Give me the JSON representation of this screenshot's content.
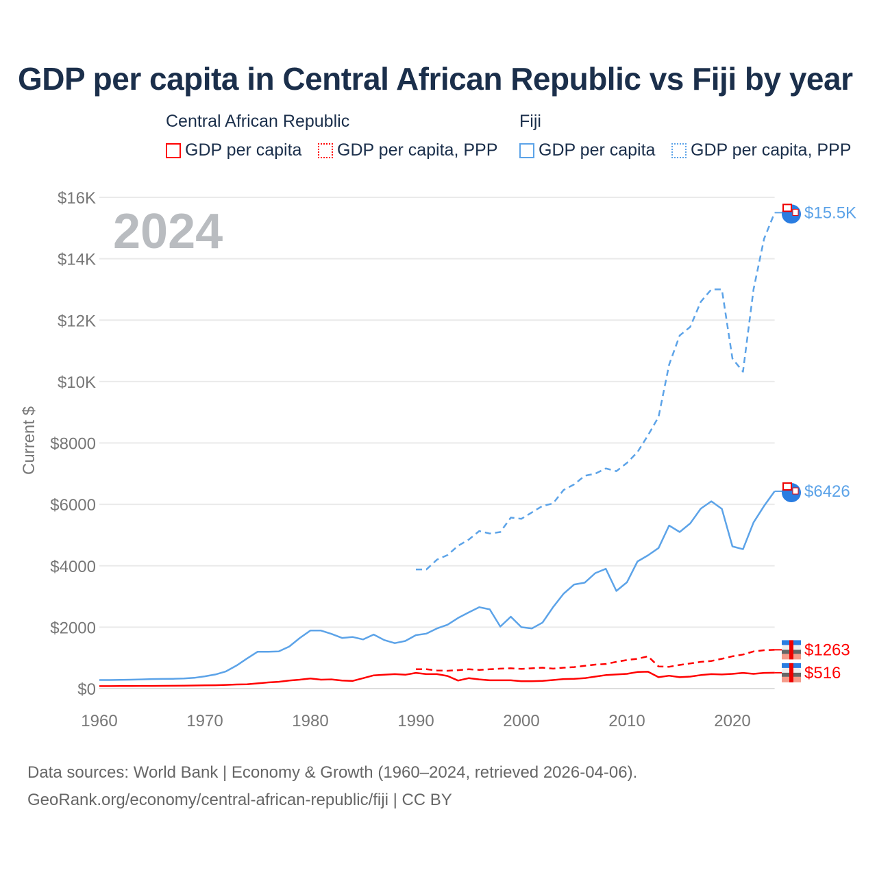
{
  "title": "GDP per capita in Central African Republic vs Fiji by year",
  "legend": {
    "groups": [
      {
        "country": "Central African Republic",
        "items": [
          "GDP per capita",
          "GDP per capita, PPP"
        ],
        "color": "#ff0000"
      },
      {
        "country": "Fiji",
        "items": [
          "GDP per capita",
          "GDP per capita, PPP"
        ],
        "color": "#5ca3e8"
      }
    ]
  },
  "source": {
    "line1": "Data sources: World Bank | Economy & Growth (1960–2024, retrieved 2026-04-06).",
    "line2": "GeoRank.org/economy/central-african-republic/fiji | CC BY"
  },
  "chart_data": {
    "type": "line",
    "title": "GDP per capita in Central African Republic vs Fiji by year",
    "year_label": "2024",
    "xlabel": "",
    "ylabel": "Current $",
    "xlim": [
      1960,
      2024
    ],
    "ylim": [
      0,
      16000
    ],
    "x_ticks": [
      1960,
      1970,
      1980,
      1990,
      2000,
      2010,
      2020
    ],
    "x_tick_labels": [
      "1960",
      "1970",
      "1980",
      "1990",
      "2000",
      "2010",
      "2020"
    ],
    "y_ticks": [
      0,
      2000,
      4000,
      6000,
      8000,
      10000,
      12000,
      14000,
      16000
    ],
    "y_tick_labels": [
      "$0",
      "$2000",
      "$4000",
      "$6000",
      "$8000",
      "$10K",
      "$12K",
      "$14K",
      "$16K"
    ],
    "grid": true,
    "series": [
      {
        "name": "Fiji GDP per capita, PPP",
        "color": "#5ca3e8",
        "dash": true,
        "start": 1990,
        "end_label": "$15.5K",
        "values": [
          3880,
          3880,
          4200,
          4350,
          4650,
          4850,
          5130,
          5050,
          5100,
          5570,
          5530,
          5740,
          5950,
          6030,
          6470,
          6650,
          6930,
          7000,
          7170,
          7080,
          7350,
          7700,
          8250,
          8850,
          10550,
          11500,
          11780,
          12600,
          13000,
          13000,
          10750,
          10320,
          13000,
          14650,
          15500
        ]
      },
      {
        "name": "Fiji GDP per capita",
        "color": "#5ca3e8",
        "dash": false,
        "start": 1960,
        "end_label": "$6426",
        "values": [
          280,
          280,
          285,
          290,
          300,
          310,
          315,
          320,
          330,
          350,
          400,
          460,
          560,
          750,
          980,
          1200,
          1200,
          1210,
          1370,
          1650,
          1890,
          1890,
          1780,
          1650,
          1680,
          1600,
          1760,
          1580,
          1480,
          1550,
          1740,
          1790,
          1960,
          2080,
          2300,
          2480,
          2650,
          2580,
          2020,
          2340,
          2000,
          1960,
          2150,
          2650,
          3090,
          3390,
          3450,
          3760,
          3900,
          3180,
          3460,
          4140,
          4340,
          4580,
          5310,
          5100,
          5380,
          5860,
          6100,
          5850,
          4630,
          4540,
          5410,
          5950,
          6426
        ]
      },
      {
        "name": "Central African Republic GDP per capita, PPP",
        "color": "#ff0000",
        "dash": true,
        "start": 1990,
        "end_label": "$1263",
        "values": [
          630,
          630,
          590,
          580,
          600,
          630,
          610,
          630,
          650,
          660,
          640,
          660,
          680,
          650,
          680,
          700,
          740,
          780,
          800,
          870,
          930,
          970,
          1050,
          720,
          710,
          770,
          820,
          870,
          900,
          970,
          1050,
          1110,
          1210,
          1250,
          1263
        ]
      },
      {
        "name": "Central African Republic GDP per capita",
        "color": "#ff0000",
        "dash": false,
        "start": 1960,
        "end_label": "$516",
        "values": [
          80,
          80,
          82,
          84,
          86,
          88,
          90,
          92,
          95,
          100,
          105,
          110,
          120,
          135,
          140,
          170,
          200,
          220,
          260,
          290,
          330,
          290,
          300,
          260,
          250,
          340,
          430,
          450,
          470,
          450,
          510,
          470,
          470,
          410,
          260,
          340,
          300,
          270,
          270,
          270,
          240,
          240,
          250,
          280,
          310,
          320,
          340,
          390,
          440,
          460,
          480,
          540,
          550,
          370,
          420,
          370,
          390,
          440,
          470,
          460,
          480,
          510,
          480,
          510,
          516
        ]
      }
    ]
  }
}
